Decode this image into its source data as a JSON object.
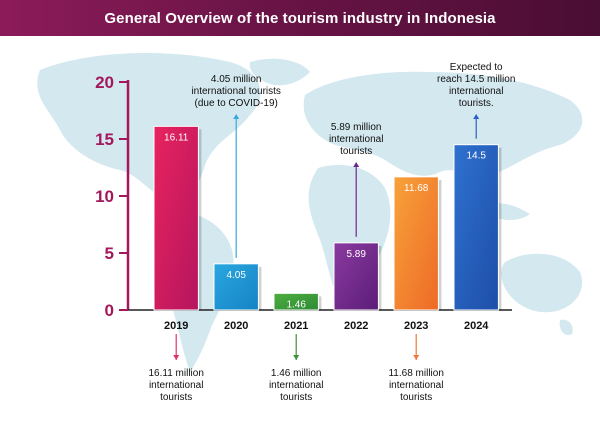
{
  "header": {
    "title": "General Overview of the tourism industry in Indonesia"
  },
  "chart_data": {
    "type": "bar",
    "title": "General Overview of the tourism industry in Indonesia",
    "xlabel": "",
    "ylabel": "",
    "categories": [
      "2019",
      "2020",
      "2021",
      "2022",
      "2023",
      "2024"
    ],
    "values": [
      16.11,
      4.05,
      1.46,
      5.89,
      11.68,
      14.5
    ],
    "value_labels": [
      "16.11",
      "4.05",
      "1.46",
      "5.89",
      "11.68",
      "14.5"
    ],
    "ylim": [
      0,
      20
    ],
    "yticks": [
      "0",
      "5",
      "10",
      "15",
      "20"
    ],
    "grid": false,
    "legend": "none",
    "colors": {
      "2019": [
        "#e8235f",
        "#b5155e"
      ],
      "2020": [
        "#2aa7e0",
        "#1583c4"
      ],
      "2021": [
        "#4cae3f",
        "#2f8a36"
      ],
      "2022": [
        "#8b3aa0",
        "#5b1d78"
      ],
      "2023": [
        "#f7a23a",
        "#ee6a27"
      ],
      "2024": [
        "#2f71d0",
        "#1d4ea8"
      ]
    },
    "annotations": [
      {
        "category": "2019",
        "position": "below",
        "lines": [
          "16.11 million",
          "international",
          "tourists"
        ],
        "arrow_color": "#e0306a"
      },
      {
        "category": "2020",
        "position": "above",
        "lines": [
          "4.05 million",
          "international tourists",
          "(due to COVID-19)"
        ],
        "arrow_color": "#3aa7dd"
      },
      {
        "category": "2021",
        "position": "below",
        "lines": [
          "1.46 million",
          "international",
          "tourists"
        ],
        "arrow_color": "#3e8f3a"
      },
      {
        "category": "2022",
        "position": "above",
        "lines": [
          "5.89 million",
          "international",
          "tourists"
        ],
        "arrow_color": "#6b2a8a"
      },
      {
        "category": "2023",
        "position": "below",
        "lines": [
          "11.68 million",
          "international",
          "tourists"
        ],
        "arrow_color": "#ef7a3a"
      },
      {
        "category": "2024",
        "position": "above",
        "lines": [
          "Expected to",
          "reach 14.5 million",
          "international",
          "tourists."
        ],
        "arrow_color": "#2f5fc4"
      }
    ]
  }
}
